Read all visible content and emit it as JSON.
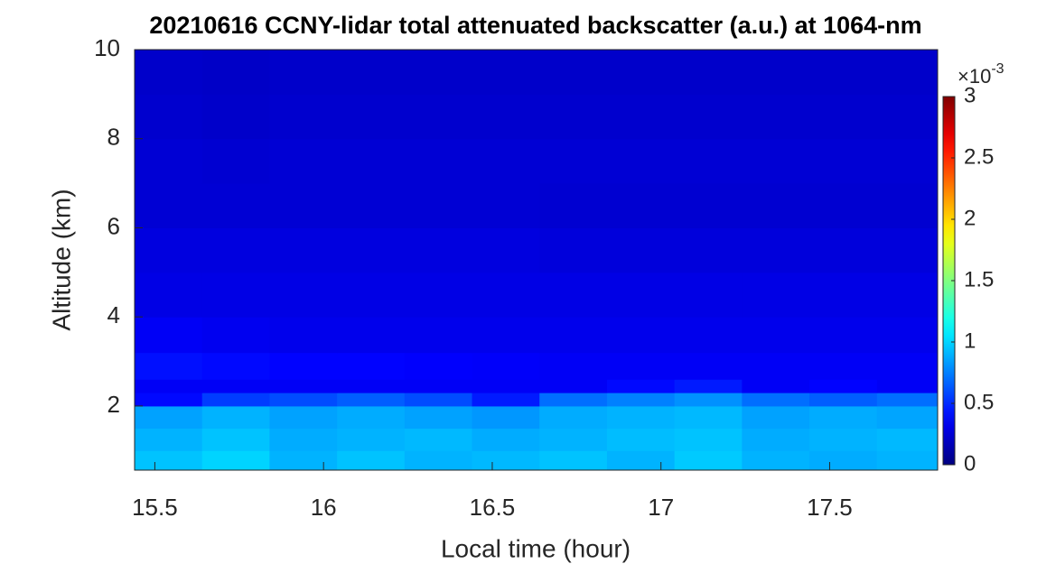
{
  "chart_data": {
    "type": "heatmap",
    "title": "20210616 CCNY-lidar total attenuated backscatter (a.u.) at 1064-nm",
    "x_label": "Local time (hour)",
    "y_label": "Altitude (km)",
    "xlim": [
      15.44,
      17.82
    ],
    "ylim": [
      0.56,
      10
    ],
    "xticks": [
      15.5,
      16,
      16.5,
      17,
      17.5
    ],
    "yticks": [
      2,
      4,
      6,
      8,
      10
    ],
    "x_edges": [
      15.44,
      15.64,
      15.84,
      16.04,
      16.24,
      16.44,
      16.64,
      16.84,
      17.04,
      17.24,
      17.44,
      17.64,
      17.82
    ],
    "y_edges": [
      0.56,
      1.0,
      1.5,
      2.0,
      2.3,
      2.6,
      3.2,
      4,
      5,
      6,
      7,
      8,
      9,
      10
    ],
    "z": [
      [
        0.95,
        1.0,
        0.9,
        0.95,
        0.9,
        0.92,
        0.95,
        0.9,
        0.97,
        0.9,
        0.88,
        0.9
      ],
      [
        0.9,
        0.95,
        0.88,
        0.9,
        0.92,
        0.88,
        0.9,
        0.93,
        0.95,
        0.88,
        0.9,
        0.92
      ],
      [
        0.85,
        0.9,
        0.85,
        0.88,
        0.85,
        0.82,
        0.88,
        0.9,
        0.92,
        0.85,
        0.88,
        0.86
      ],
      [
        0.4,
        0.55,
        0.6,
        0.65,
        0.6,
        0.45,
        0.7,
        0.75,
        0.8,
        0.7,
        0.65,
        0.7
      ],
      [
        0.35,
        0.35,
        0.35,
        0.35,
        0.35,
        0.35,
        0.35,
        0.4,
        0.45,
        0.35,
        0.38,
        0.35
      ],
      [
        0.42,
        0.4,
        0.38,
        0.38,
        0.37,
        0.36,
        0.35,
        0.35,
        0.35,
        0.35,
        0.35,
        0.35
      ],
      [
        0.35,
        0.33,
        0.32,
        0.32,
        0.32,
        0.32,
        0.32,
        0.32,
        0.32,
        0.32,
        0.32,
        0.32
      ],
      [
        0.3,
        0.3,
        0.3,
        0.3,
        0.3,
        0.3,
        0.3,
        0.3,
        0.3,
        0.3,
        0.3,
        0.3
      ],
      [
        0.28,
        0.28,
        0.28,
        0.28,
        0.28,
        0.28,
        0.27,
        0.27,
        0.27,
        0.27,
        0.27,
        0.27
      ],
      [
        0.25,
        0.25,
        0.25,
        0.25,
        0.25,
        0.25,
        0.24,
        0.24,
        0.24,
        0.24,
        0.24,
        0.24
      ],
      [
        0.25,
        0.24,
        0.25,
        0.25,
        0.25,
        0.25,
        0.25,
        0.25,
        0.25,
        0.25,
        0.25,
        0.25
      ],
      [
        0.23,
        0.22,
        0.23,
        0.23,
        0.23,
        0.23,
        0.23,
        0.23,
        0.23,
        0.23,
        0.23,
        0.23
      ],
      [
        0.22,
        0.21,
        0.22,
        0.22,
        0.22,
        0.22,
        0.22,
        0.22,
        0.22,
        0.22,
        0.22,
        0.22
      ]
    ],
    "colormap": "jet",
    "clim": [
      0,
      3
    ],
    "cticks": [
      0,
      0.5,
      1,
      1.5,
      2,
      2.5,
      3
    ],
    "c_multiplier_base": "×10",
    "c_multiplier_exponent": "-3"
  }
}
